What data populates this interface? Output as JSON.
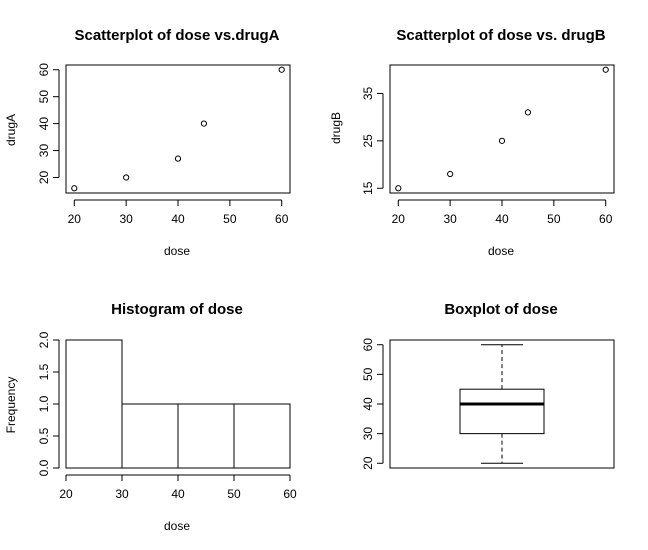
{
  "chart_data": [
    {
      "id": "scatterA",
      "type": "scatter",
      "title": "Scatterplot of dose vs.drugA",
      "xlabel": "dose",
      "ylabel": "drugA",
      "x": [
        20,
        30,
        40,
        45,
        60
      ],
      "y": [
        16,
        20,
        27,
        40,
        60
      ],
      "xlim": [
        18.4,
        61.6
      ],
      "ylim": [
        14.24,
        61.76
      ],
      "xticks": [
        "20",
        "30",
        "40",
        "50",
        "60"
      ],
      "yticks": [
        "20",
        "30",
        "40",
        "50",
        "60"
      ],
      "marker": "open-circle",
      "grid": false,
      "legend": "none"
    },
    {
      "id": "scatterB",
      "type": "scatter",
      "title": "Scatterplot of dose vs. drugB",
      "xlabel": "dose",
      "ylabel": "drugB",
      "x": [
        20,
        30,
        40,
        45,
        60
      ],
      "y": [
        15,
        18,
        25,
        31,
        40
      ],
      "xlim": [
        18.4,
        61.6
      ],
      "ylim": [
        14,
        41
      ],
      "xticks": [
        "20",
        "30",
        "40",
        "50",
        "60"
      ],
      "yticks": [
        "15",
        "25",
        "35"
      ],
      "marker": "open-circle",
      "grid": false,
      "legend": "none"
    },
    {
      "id": "hist",
      "type": "bar",
      "title": "Histogram of dose",
      "xlabel": "dose",
      "ylabel": "Frequency",
      "bins": [
        [
          20,
          30
        ],
        [
          30,
          40
        ],
        [
          40,
          50
        ],
        [
          50,
          60
        ]
      ],
      "values": [
        2,
        1,
        1,
        1
      ],
      "xlim": [
        20,
        60
      ],
      "ylim": [
        0,
        2
      ],
      "xticks": [
        "20",
        "30",
        "40",
        "50",
        "60"
      ],
      "yticks": [
        "0.0",
        "0.5",
        "1.0",
        "1.5",
        "2.0"
      ],
      "grid": false,
      "legend": "none"
    },
    {
      "id": "box",
      "type": "box",
      "title": "Boxplot of dose",
      "stats": {
        "min": 20,
        "q1": 30,
        "median": 40,
        "q3": 45,
        "max": 60
      },
      "ylim": [
        18.4,
        61.6
      ],
      "yticks": [
        "20",
        "30",
        "40",
        "50",
        "60"
      ],
      "grid": false,
      "legend": "none"
    }
  ]
}
